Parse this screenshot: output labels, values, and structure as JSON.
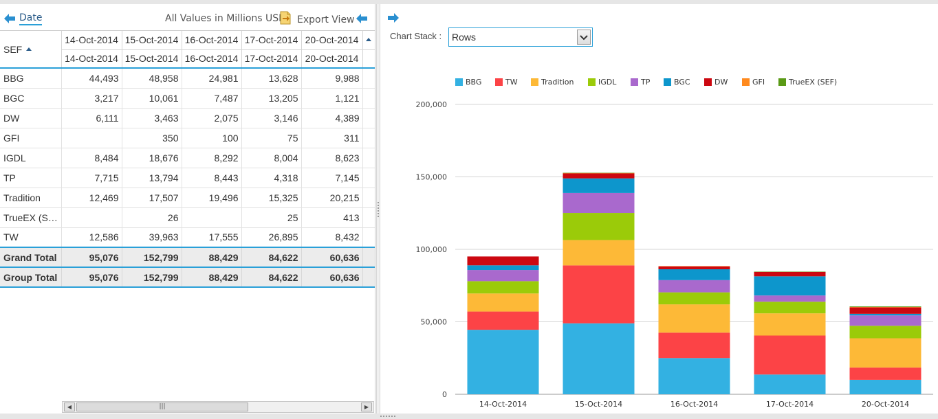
{
  "left_panel": {
    "date_label": "Date",
    "values_note": "All Values in Millions USD",
    "export_label": "Export View",
    "row_header_label": "SEF",
    "date_headers_top": [
      "14-Oct-2014",
      "15-Oct-2014",
      "16-Oct-2014",
      "17-Oct-2014",
      "20-Oct-2014"
    ],
    "date_headers_bottom": [
      "14-Oct-2014",
      "15-Oct-2014",
      "16-Oct-2014",
      "17-Oct-2014",
      "20-Oct-2014"
    ],
    "rows": [
      {
        "label": "BBG",
        "values": [
          "44,493",
          "48,958",
          "24,981",
          "13,628",
          "9,988"
        ]
      },
      {
        "label": "BGC",
        "values": [
          "3,217",
          "10,061",
          "7,487",
          "13,205",
          "1,121"
        ]
      },
      {
        "label": "DW",
        "values": [
          "6,111",
          "3,463",
          "2,075",
          "3,146",
          "4,389"
        ]
      },
      {
        "label": "GFI",
        "values": [
          "",
          "350",
          "100",
          "75",
          "311"
        ]
      },
      {
        "label": "IGDL",
        "values": [
          "8,484",
          "18,676",
          "8,292",
          "8,004",
          "8,623"
        ]
      },
      {
        "label": "TP",
        "values": [
          "7,715",
          "13,794",
          "8,443",
          "4,318",
          "7,145"
        ]
      },
      {
        "label": "Tradition",
        "values": [
          "12,469",
          "17,507",
          "19,496",
          "15,325",
          "20,215"
        ]
      },
      {
        "label": "TrueEX (S…",
        "values": [
          "",
          "26",
          "",
          "25",
          "413"
        ]
      },
      {
        "label": "TW",
        "values": [
          "12,586",
          "39,963",
          "17,555",
          "26,895",
          "8,432"
        ]
      }
    ],
    "grand_total": {
      "label": "Grand Total",
      "values": [
        "95,076",
        "152,799",
        "88,429",
        "84,622",
        "60,636"
      ]
    },
    "group_total": {
      "label": "Group Total",
      "values": [
        "95,076",
        "152,799",
        "88,429",
        "84,622",
        "60,636"
      ]
    }
  },
  "right_panel": {
    "chart_stack_label": "Chart Stack :",
    "chart_stack_value": "Rows"
  },
  "colors": {
    "BBG": "#33b1e2",
    "TW": "#fc4346",
    "Tradition": "#fdb937",
    "IGDL": "#9bcb09",
    "TP": "#a969cd",
    "BGC": "#0d96cc",
    "DW": "#cc0810",
    "GFI": "#ff8a1e",
    "TrueEX (SEF)": "#5a9a16"
  },
  "chart_data": {
    "type": "bar",
    "stacked": true,
    "categories": [
      "14-Oct-2014",
      "15-Oct-2014",
      "16-Oct-2014",
      "17-Oct-2014",
      "20-Oct-2014"
    ],
    "ylim": [
      0,
      200000
    ],
    "yticks": [
      0,
      50000,
      100000,
      150000,
      200000
    ],
    "ytick_labels": [
      "0",
      "50,000",
      "100,000",
      "150,000",
      "200,000"
    ],
    "legend_position": "top",
    "grid": true,
    "series": [
      {
        "name": "BBG",
        "values": [
          44493,
          48958,
          24981,
          13628,
          9988
        ]
      },
      {
        "name": "TW",
        "values": [
          12586,
          39963,
          17555,
          26895,
          8432
        ]
      },
      {
        "name": "Tradition",
        "values": [
          12469,
          17507,
          19496,
          15325,
          20215
        ]
      },
      {
        "name": "IGDL",
        "values": [
          8484,
          18676,
          8292,
          8004,
          8623
        ]
      },
      {
        "name": "TP",
        "values": [
          7715,
          13794,
          8443,
          4318,
          7145
        ]
      },
      {
        "name": "BGC",
        "values": [
          3217,
          10061,
          7487,
          13205,
          1121
        ]
      },
      {
        "name": "DW",
        "values": [
          6111,
          3463,
          2075,
          3146,
          4389
        ]
      },
      {
        "name": "GFI",
        "values": [
          0,
          350,
          100,
          75,
          311
        ]
      },
      {
        "name": "TrueEX (SEF)",
        "values": [
          0,
          26,
          0,
          25,
          413
        ]
      }
    ]
  }
}
